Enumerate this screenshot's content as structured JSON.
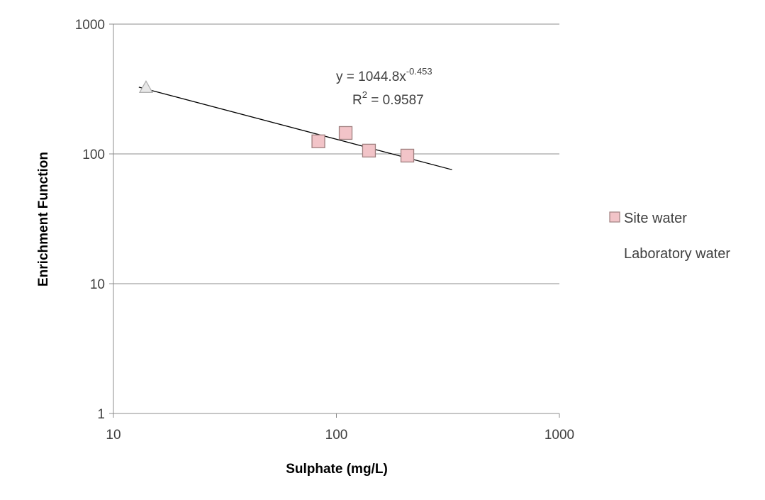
{
  "chart_data": {
    "type": "scatter",
    "xlabel": "Sulphate (mg/L)",
    "ylabel": "Enrichment Function",
    "x_scale": "log",
    "y_scale": "log",
    "xlim": [
      10,
      1000
    ],
    "ylim": [
      1,
      1000
    ],
    "x_ticks": [
      "10",
      "100",
      "1000"
    ],
    "y_ticks": [
      "1",
      "10",
      "100",
      "1000"
    ],
    "grid": "horizontal major gridlines",
    "legend_position": "right",
    "series": [
      {
        "name": "Site water",
        "marker": "square",
        "color": "#f2c4c8",
        "edge_color": "#a08080",
        "points": [
          {
            "x": 83,
            "y": 125
          },
          {
            "x": 110,
            "y": 145
          },
          {
            "x": 140,
            "y": 106
          },
          {
            "x": 208,
            "y": 97
          }
        ]
      },
      {
        "name": "Laboratory water",
        "marker": "triangle",
        "color": "#e8e8e8",
        "edge_color": "#b0b0b0",
        "points": [
          {
            "x": 14,
            "y": 325
          }
        ]
      }
    ],
    "trendline": {
      "type": "power",
      "a": 1044.8,
      "b": -0.453,
      "x_range": [
        13,
        330
      ],
      "color": "#000000",
      "equation_prefix": "y = 1044.8x",
      "equation_exponent": "-0.453",
      "r2_prefix": "R",
      "r2_superscript": "2",
      "r2_suffix": " = 0.9587"
    }
  }
}
